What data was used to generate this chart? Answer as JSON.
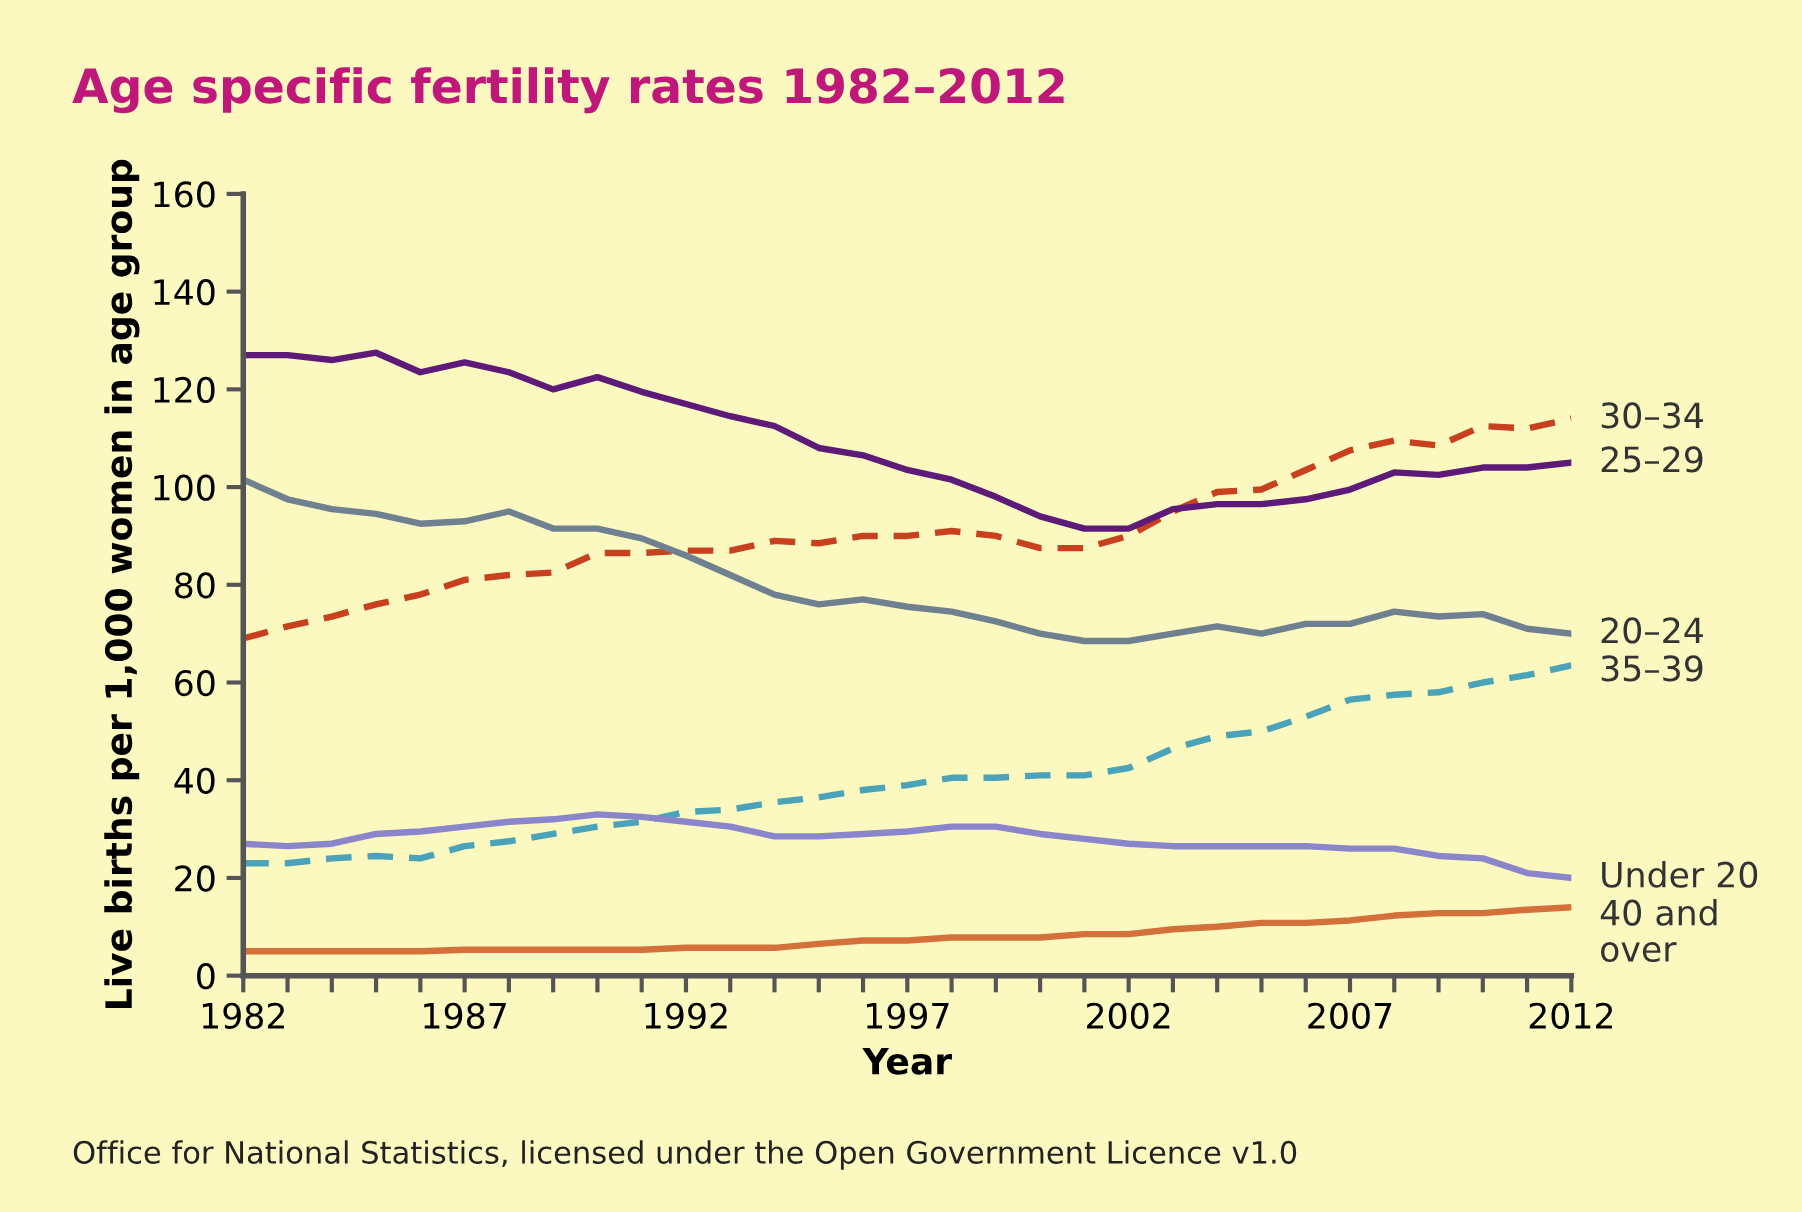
{
  "chart_data": {
    "type": "line",
    "title": "Age specific fertility rates 1982–2012",
    "xlabel": "Year",
    "ylabel": "Live births per 1,000 women in age group",
    "annotations": [
      "Office for National Statistics, licensed under the Open Government Licence v1.0"
    ],
    "x": [
      1982,
      1983,
      1984,
      1985,
      1986,
      1987,
      1988,
      1989,
      1990,
      1991,
      1992,
      1993,
      1994,
      1995,
      1996,
      1997,
      1998,
      1999,
      2000,
      2001,
      2002,
      2003,
      2004,
      2005,
      2006,
      2007,
      2008,
      2009,
      2010,
      2011,
      2012
    ],
    "xlim": [
      1982,
      2012
    ],
    "xticks": [
      1982,
      {
        "value": 1983,
        "label": null
      },
      {
        "value": 1984,
        "label": null
      },
      {
        "value": 1985,
        "label": null
      },
      {
        "value": 1986,
        "label": null
      },
      1987,
      {
        "value": 1988,
        "label": null
      },
      {
        "value": 1989,
        "label": null
      },
      {
        "value": 1990,
        "label": null
      },
      {
        "value": 1991,
        "label": null
      },
      1992,
      {
        "value": 1993,
        "label": null
      },
      {
        "value": 1994,
        "label": null
      },
      {
        "value": 1995,
        "label": null
      },
      {
        "value": 1996,
        "label": null
      },
      1997,
      {
        "value": 1998,
        "label": null
      },
      {
        "value": 1999,
        "label": null
      },
      {
        "value": 2000,
        "label": null
      },
      {
        "value": 2001,
        "label": null
      },
      2002,
      {
        "value": 2003,
        "label": null
      },
      {
        "value": 2004,
        "label": null
      },
      {
        "value": 2005,
        "label": null
      },
      {
        "value": 2006,
        "label": null
      },
      2007,
      {
        "value": 2008,
        "label": null
      },
      {
        "value": 2009,
        "label": null
      },
      {
        "value": 2010,
        "label": null
      },
      {
        "value": 2011,
        "label": null
      },
      2012
    ],
    "ylim": [
      0,
      160
    ],
    "yticks": [
      0,
      20,
      40,
      60,
      80,
      100,
      120,
      140,
      160
    ],
    "grid": false,
    "legend": false,
    "marker": "none",
    "series": [
      {
        "name": "30–34",
        "color": "#c8401e",
        "line_style": "dashed",
        "values": [
          69,
          71.5,
          73.5,
          76,
          78,
          81,
          82,
          82.5,
          86.5,
          86.5,
          87,
          87,
          89,
          88.5,
          90,
          90,
          91,
          90,
          87.5,
          87.5,
          90,
          95,
          99,
          99.5,
          103.5,
          107.5,
          109.5,
          108.5,
          112.5,
          112,
          114
        ]
      },
      {
        "name": "25–29",
        "color": "#5e1a78",
        "line_style": "solid",
        "values": [
          127,
          127,
          126,
          127.5,
          123.5,
          125.5,
          123.5,
          120,
          122.5,
          119.5,
          117,
          114.5,
          112.5,
          108,
          106.5,
          103.5,
          101.5,
          98,
          94,
          91.5,
          91.5,
          95.5,
          96.5,
          96.5,
          97.5,
          99.5,
          103,
          102.5,
          104,
          104,
          105
        ]
      },
      {
        "name": "20–24",
        "color": "#6f8090",
        "line_style": "solid",
        "values": [
          101.5,
          97.5,
          95.5,
          94.5,
          92.5,
          93,
          95,
          91.5,
          91.5,
          89.5,
          86,
          82,
          78,
          76,
          77,
          75.5,
          74.5,
          72.5,
          70,
          68.5,
          68.5,
          70,
          71.5,
          70,
          72,
          72,
          74.5,
          73.5,
          74,
          71,
          70
        ]
      },
      {
        "name": "35–39",
        "color": "#4aa3b8",
        "line_style": "dashed",
        "values": [
          23,
          23,
          24,
          24.5,
          24,
          26.5,
          27.5,
          29,
          30.5,
          31.5,
          33.5,
          34,
          35.5,
          36.5,
          38,
          39,
          40.5,
          40.5,
          41,
          41,
          42.5,
          46.5,
          49,
          50,
          53,
          56.5,
          57.5,
          58,
          60,
          61.5,
          63.5
        ]
      },
      {
        "name": "Under 20",
        "color": "#8b85cc",
        "line_style": "solid",
        "values": [
          27,
          26.5,
          27,
          29,
          29.5,
          30.5,
          31.5,
          32,
          33,
          32.5,
          31.5,
          30.5,
          28.5,
          28.5,
          29,
          29.5,
          30.5,
          30.5,
          29,
          28,
          27,
          26.5,
          26.5,
          26.5,
          26.5,
          26,
          26,
          24.5,
          24,
          21,
          20
        ]
      },
      {
        "name": "40 and\nover",
        "color": "#d4703a",
        "line_style": "solid",
        "values": [
          5,
          5,
          5,
          5,
          5,
          5.3,
          5.3,
          5.3,
          5.3,
          5.3,
          5.7,
          5.7,
          5.7,
          6.5,
          7.2,
          7.2,
          7.8,
          7.8,
          7.8,
          8.5,
          8.5,
          9.5,
          10,
          10.8,
          10.8,
          11.3,
          12.3,
          12.8,
          12.8,
          13.5,
          14
        ]
      }
    ]
  }
}
